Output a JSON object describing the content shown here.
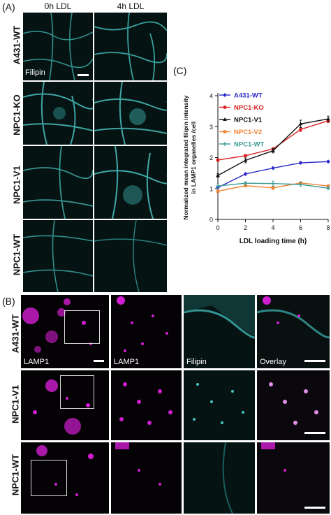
{
  "panel_a": {
    "letter": "(A)",
    "col_labels": [
      "0h LDL",
      "4h LDL"
    ],
    "row_labels": [
      "A431-WT",
      "NPC1-KO",
      "NPC1-V1",
      "NPC1-WT"
    ],
    "stain_label": "Filipin"
  },
  "panel_b": {
    "letter": "(B)",
    "row_labels": [
      "A431-WT",
      "NPC1-V1",
      "NPC1-WT"
    ],
    "overview_label": "LAMP1",
    "zoom_labels": [
      "LAMP1",
      "Filipin",
      "Overlay"
    ]
  },
  "panel_c": {
    "letter": "(C)"
  },
  "chart_data": {
    "type": "line",
    "title": "",
    "xlabel": "LDL loading time (h)",
    "ylabel": "Normalized mean integrated filipin intensity in LAMP1 organelles /cell",
    "ylabel_lines": [
      "Normalized mean integrated filipin intensity",
      "in LAMP1 organelles /cell"
    ],
    "x": [
      0,
      2,
      4,
      6,
      8
    ],
    "xlim": [
      0,
      8
    ],
    "ylim": [
      0,
      4
    ],
    "xticks": [
      "0",
      "2",
      "4",
      "6",
      "8"
    ],
    "yticks": [
      "0",
      "1",
      "2",
      "3",
      "4"
    ],
    "legend_position": "top-left",
    "series": [
      {
        "name": "A431-WT",
        "color": "#2929c8",
        "marker": "diamond",
        "values": [
          1.03,
          1.47,
          1.66,
          1.83,
          1.87
        ],
        "errors": [
          0.04,
          0.03,
          0.03,
          0.03,
          0.03
        ]
      },
      {
        "name": "NPC1-KO",
        "color": "#d81d1d",
        "marker": "circle",
        "values": [
          1.92,
          2.06,
          2.28,
          2.91,
          3.19
        ],
        "errors": [
          0.05,
          0.04,
          0.04,
          0.07,
          0.06
        ]
      },
      {
        "name": "NPC1-V1",
        "color": "#111111",
        "marker": "triangle",
        "values": [
          1.42,
          1.91,
          2.22,
          3.09,
          3.25
        ],
        "errors": [
          0.06,
          0.08,
          0.07,
          0.12,
          0.09
        ]
      },
      {
        "name": "NPC1-V2",
        "color": "#f08232",
        "marker": "square",
        "values": [
          0.91,
          1.09,
          1.02,
          1.18,
          1.08
        ],
        "errors": [
          0.03,
          0.04,
          0.05,
          0.04,
          0.04
        ]
      },
      {
        "name": "NPC1-WT",
        "color": "#3a9a96",
        "marker": "star",
        "values": [
          1.08,
          1.17,
          1.16,
          1.13,
          1.01
        ],
        "errors": [
          0.07,
          0.04,
          0.08,
          0.06,
          0.04
        ]
      }
    ]
  }
}
